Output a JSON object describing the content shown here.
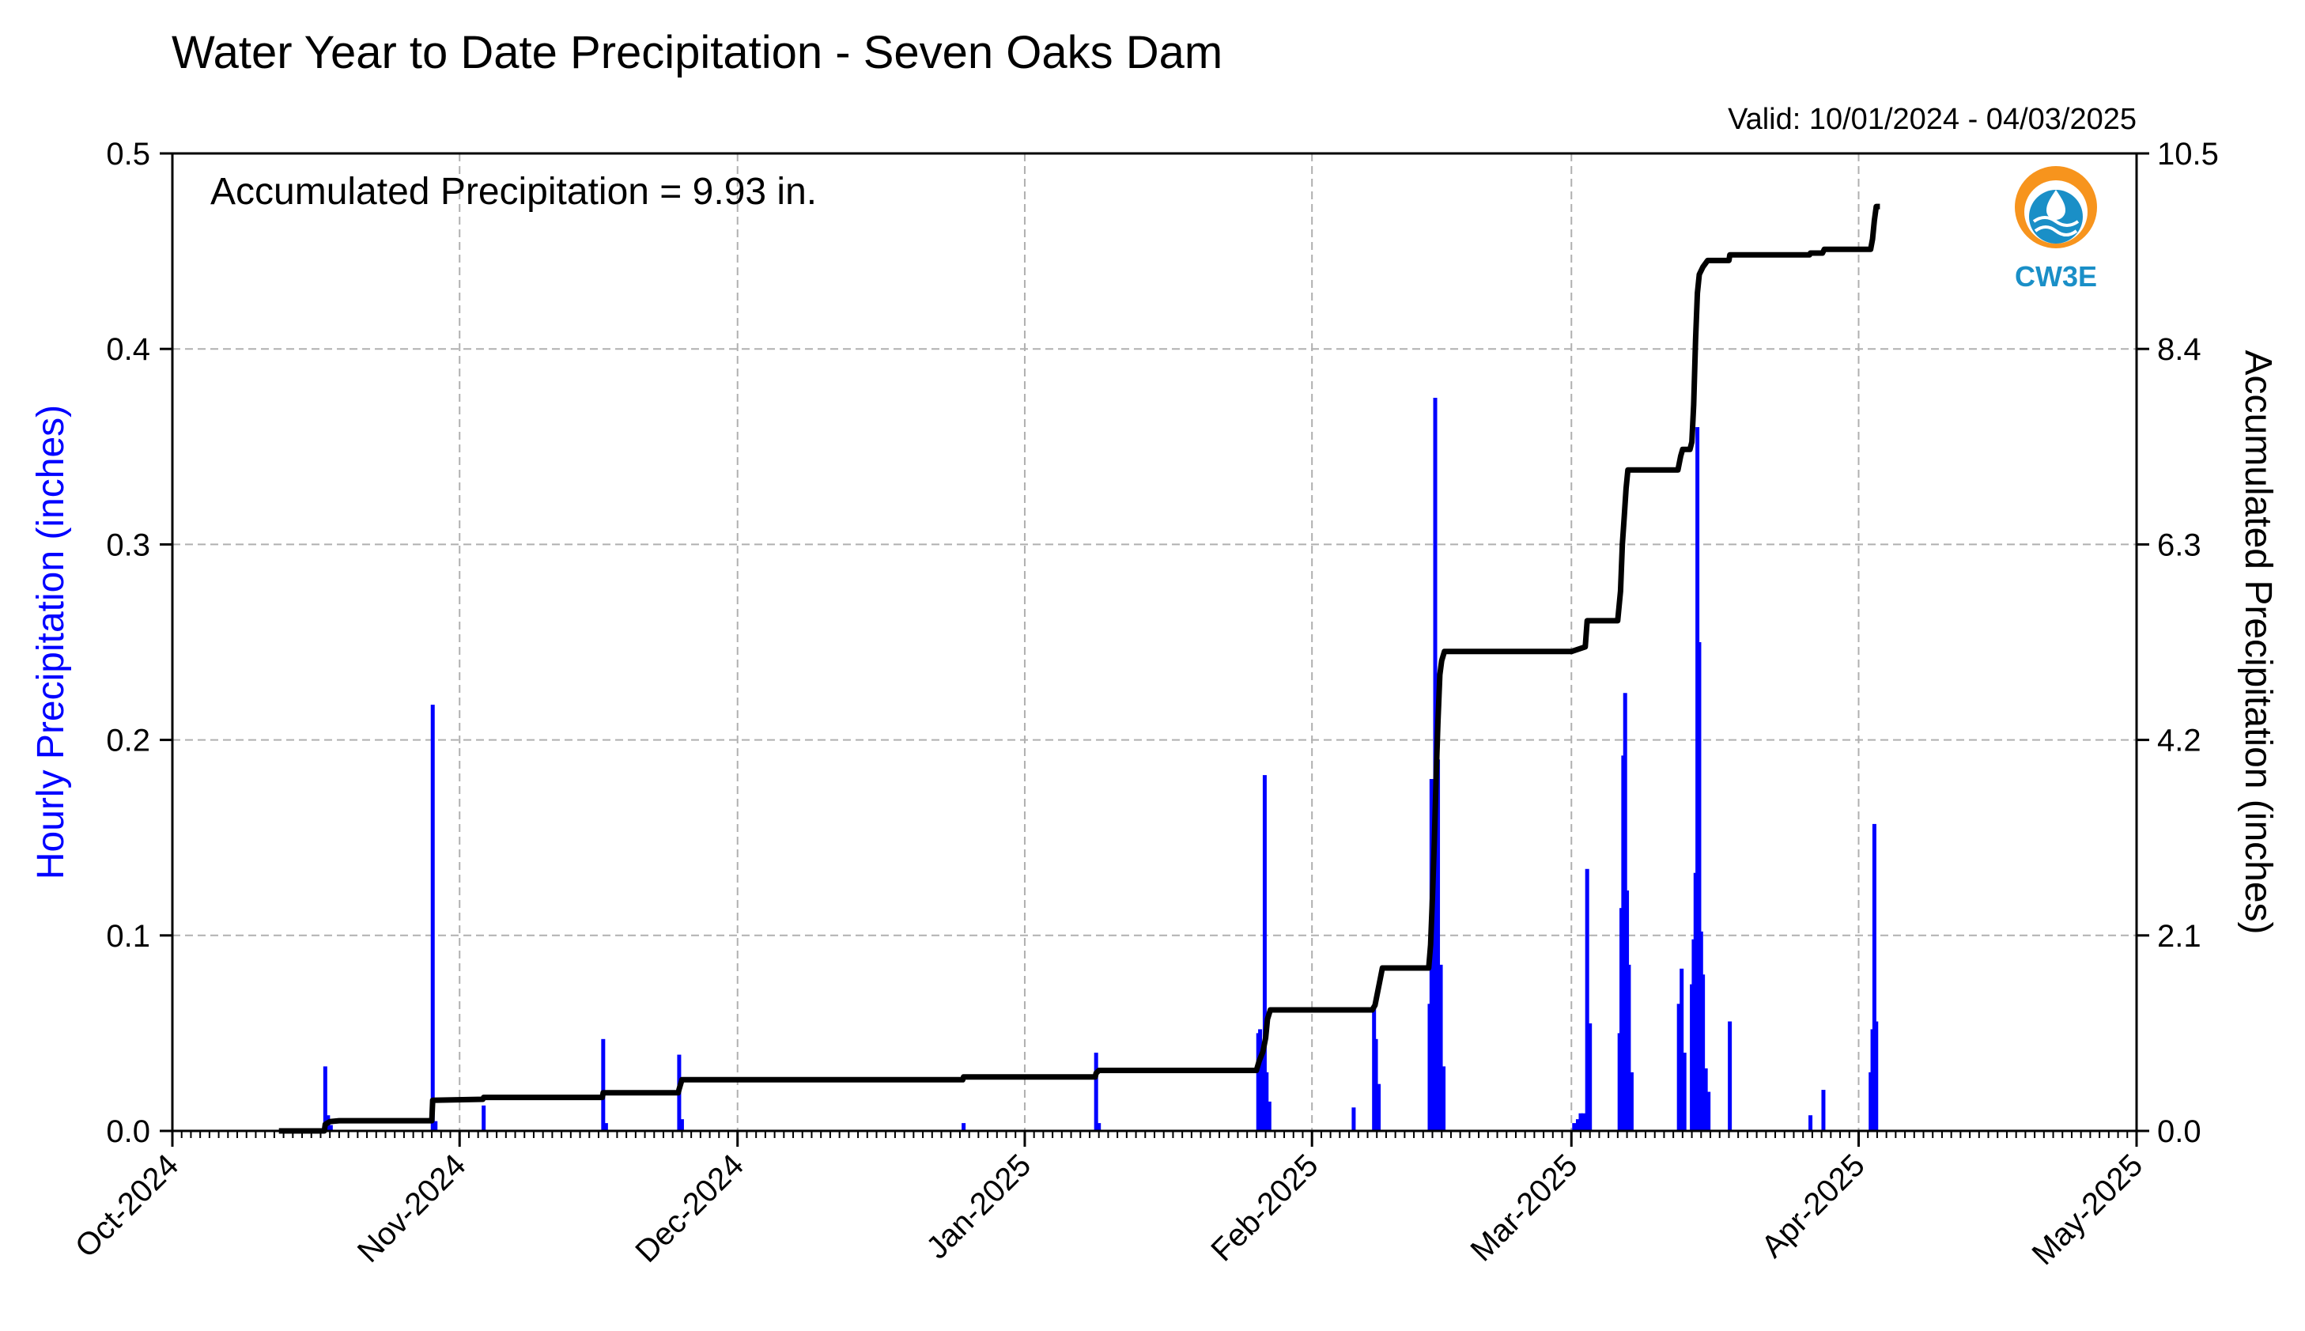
{
  "chart_data": {
    "type": "bar",
    "title": "Water Year to Date Precipitation - Seven Oaks Dam",
    "valid_label": "Valid: 10/01/2024 - 04/03/2025",
    "annotation": "Accumulated Precipitation = 9.93 in.",
    "logo_text": "CW3E",
    "ylabel_left": "Hourly Precipitation (inches)",
    "ylabel_right": "Accumulated Precipitation (inches)",
    "x_range_days": [
      0,
      212
    ],
    "ylim_left": [
      0,
      0.5
    ],
    "ylim_right": [
      0,
      10.5
    ],
    "yticks_left": [
      "0.0",
      "0.1",
      "0.2",
      "0.3",
      "0.4",
      "0.5"
    ],
    "yticks_right": [
      "0.0",
      "2.1",
      "4.2",
      "6.3",
      "8.4",
      "10.5"
    ],
    "x_month_ticks": [
      {
        "day": 0,
        "label": "Oct-2024"
      },
      {
        "day": 31,
        "label": "Nov-2024"
      },
      {
        "day": 61,
        "label": "Dec-2024"
      },
      {
        "day": 92,
        "label": "Jan-2025"
      },
      {
        "day": 123,
        "label": "Feb-2025"
      },
      {
        "day": 151,
        "label": "Mar-2025"
      },
      {
        "day": 182,
        "label": "Apr-2025"
      },
      {
        "day": 212,
        "label": "May-2025"
      }
    ],
    "grid": true,
    "colors": {
      "hourly": "#0000ff",
      "accumulated": "#000000",
      "grid": "#b0b0b0",
      "logo_orange": "#f7941d",
      "logo_blue": "#1a8fc7"
    },
    "series": [
      {
        "name": "Hourly Precipitation (inches)",
        "kind": "bar",
        "points": [
          [
            16.5,
            0.033
          ],
          [
            16.8,
            0.008
          ],
          [
            17.1,
            0.003
          ],
          [
            28.1,
            0.218
          ],
          [
            28.4,
            0.005
          ],
          [
            33.6,
            0.013
          ],
          [
            46.5,
            0.047
          ],
          [
            46.8,
            0.004
          ],
          [
            54.7,
            0.039
          ],
          [
            55.0,
            0.006
          ],
          [
            85.4,
            0.004
          ],
          [
            99.7,
            0.04
          ],
          [
            100.0,
            0.004
          ],
          [
            117.2,
            0.05
          ],
          [
            117.4,
            0.052
          ],
          [
            117.7,
            0.042
          ],
          [
            117.9,
            0.182
          ],
          [
            118.1,
            0.03
          ],
          [
            118.4,
            0.015
          ],
          [
            127.5,
            0.012
          ],
          [
            129.7,
            0.063
          ],
          [
            129.9,
            0.047
          ],
          [
            130.2,
            0.024
          ],
          [
            135.7,
            0.065
          ],
          [
            135.9,
            0.18
          ],
          [
            136.1,
            0.16
          ],
          [
            136.3,
            0.375
          ],
          [
            136.6,
            0.19
          ],
          [
            136.9,
            0.085
          ],
          [
            137.2,
            0.033
          ],
          [
            151.3,
            0.004
          ],
          [
            151.7,
            0.006
          ],
          [
            152.0,
            0.009
          ],
          [
            152.3,
            0.009
          ],
          [
            152.7,
            0.134
          ],
          [
            153.0,
            0.055
          ],
          [
            156.2,
            0.05
          ],
          [
            156.4,
            0.114
          ],
          [
            156.6,
            0.192
          ],
          [
            156.8,
            0.224
          ],
          [
            157.0,
            0.123
          ],
          [
            157.2,
            0.085
          ],
          [
            157.5,
            0.03
          ],
          [
            162.6,
            0.065
          ],
          [
            162.9,
            0.083
          ],
          [
            163.2,
            0.04
          ],
          [
            164.0,
            0.075
          ],
          [
            164.2,
            0.098
          ],
          [
            164.4,
            0.132
          ],
          [
            164.6,
            0.36
          ],
          [
            164.8,
            0.25
          ],
          [
            165.0,
            0.102
          ],
          [
            165.2,
            0.08
          ],
          [
            165.5,
            0.032
          ],
          [
            165.8,
            0.02
          ],
          [
            168.1,
            0.056
          ],
          [
            176.8,
            0.008
          ],
          [
            178.2,
            0.021
          ],
          [
            183.3,
            0.03
          ],
          [
            183.5,
            0.052
          ],
          [
            183.7,
            0.157
          ],
          [
            183.9,
            0.056
          ]
        ]
      },
      {
        "name": "Accumulated Precipitation (inches)",
        "kind": "line",
        "points": [
          [
            11.5,
            0.0
          ],
          [
            16.4,
            0.0
          ],
          [
            16.5,
            0.07
          ],
          [
            17.0,
            0.1
          ],
          [
            18.0,
            0.11
          ],
          [
            28.0,
            0.11
          ],
          [
            28.1,
            0.33
          ],
          [
            33.5,
            0.34
          ],
          [
            33.6,
            0.36
          ],
          [
            46.4,
            0.36
          ],
          [
            46.5,
            0.41
          ],
          [
            54.6,
            0.41
          ],
          [
            54.7,
            0.45
          ],
          [
            55.0,
            0.55
          ],
          [
            85.3,
            0.55
          ],
          [
            85.4,
            0.58
          ],
          [
            99.6,
            0.58
          ],
          [
            99.7,
            0.62
          ],
          [
            100.0,
            0.65
          ],
          [
            117.0,
            0.65
          ],
          [
            117.3,
            0.75
          ],
          [
            117.7,
            0.85
          ],
          [
            118.0,
            1.0
          ],
          [
            118.2,
            1.2
          ],
          [
            118.5,
            1.3
          ],
          [
            129.5,
            1.3
          ],
          [
            129.8,
            1.35
          ],
          [
            130.1,
            1.5
          ],
          [
            130.4,
            1.65
          ],
          [
            130.6,
            1.75
          ],
          [
            135.6,
            1.75
          ],
          [
            135.8,
            2.0
          ],
          [
            136.0,
            2.5
          ],
          [
            136.2,
            3.1
          ],
          [
            136.4,
            3.8
          ],
          [
            136.6,
            4.4
          ],
          [
            136.8,
            4.9
          ],
          [
            137.0,
            5.05
          ],
          [
            137.3,
            5.15
          ],
          [
            151.0,
            5.15
          ],
          [
            152.5,
            5.2
          ],
          [
            152.7,
            5.48
          ],
          [
            156.0,
            5.48
          ],
          [
            156.3,
            5.8
          ],
          [
            156.5,
            6.3
          ],
          [
            156.7,
            6.6
          ],
          [
            156.9,
            6.9
          ],
          [
            157.1,
            7.1
          ],
          [
            162.5,
            7.1
          ],
          [
            162.8,
            7.25
          ],
          [
            163.0,
            7.32
          ],
          [
            163.8,
            7.32
          ],
          [
            164.0,
            7.4
          ],
          [
            164.2,
            7.8
          ],
          [
            164.4,
            8.5
          ],
          [
            164.6,
            9.0
          ],
          [
            164.8,
            9.2
          ],
          [
            165.2,
            9.28
          ],
          [
            165.7,
            9.35
          ],
          [
            168.0,
            9.35
          ],
          [
            168.1,
            9.41
          ],
          [
            176.7,
            9.41
          ],
          [
            176.8,
            9.43
          ],
          [
            178.1,
            9.43
          ],
          [
            178.3,
            9.47
          ],
          [
            183.3,
            9.47
          ],
          [
            183.5,
            9.58
          ],
          [
            183.7,
            9.78
          ],
          [
            183.9,
            9.93
          ],
          [
            184.3,
            9.93
          ]
        ]
      }
    ]
  }
}
